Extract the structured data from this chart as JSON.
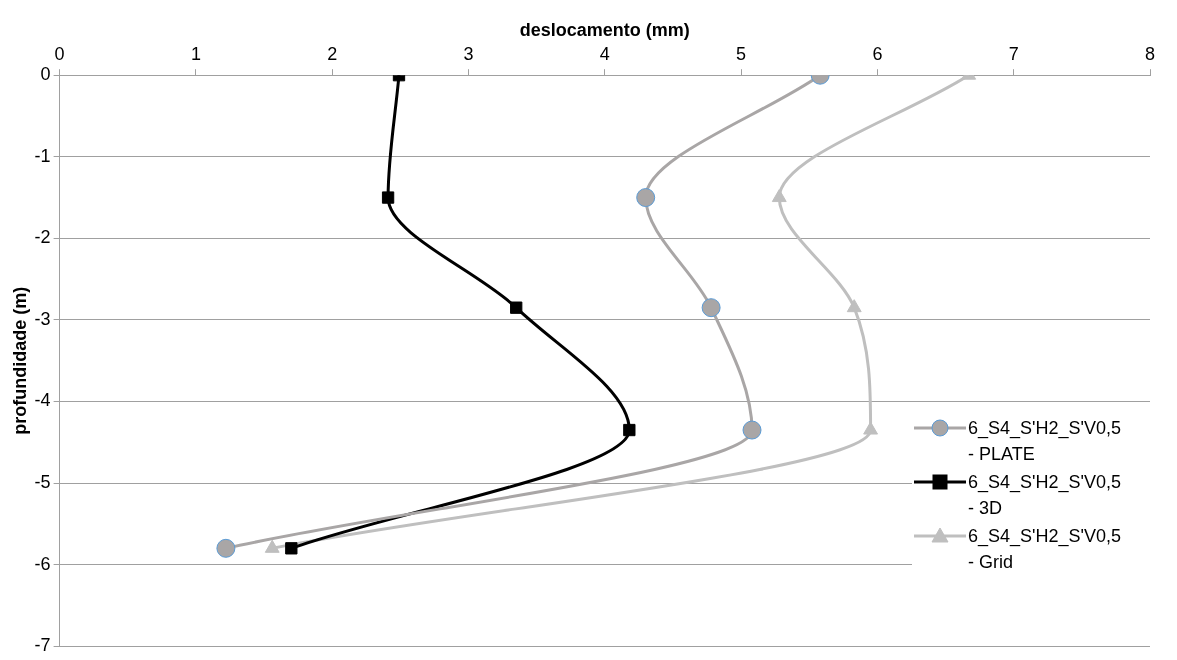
{
  "chart_data": {
    "type": "line",
    "xlabel": "deslocamento (mm)",
    "ylabel": "profundidade (m)",
    "xlim": [
      0,
      8
    ],
    "xticks": [
      0,
      1,
      2,
      3,
      4,
      5,
      6,
      7,
      8
    ],
    "ylim": [
      -7,
      0
    ],
    "yticks": [
      -7,
      -6,
      -5,
      -4,
      -3,
      -2,
      -1,
      0
    ],
    "grid": "y",
    "legend": "right",
    "line_style": "solid",
    "series": [
      {
        "name": "6_S4_S'H2_S'V0,5 - PLATE",
        "color": "#a9a6a6",
        "marker": "circle",
        "x": [
          5.58,
          4.3,
          4.78,
          5.08,
          1.22
        ],
        "values": [
          0,
          -1.5,
          -2.85,
          -4.35,
          -5.8
        ]
      },
      {
        "name": "6_S4_S'H2_S'V0,5 - 3D",
        "color": "#000000",
        "marker": "square",
        "x": [
          2.49,
          2.41,
          3.35,
          4.18,
          1.7
        ],
        "values": [
          0,
          -1.5,
          -2.85,
          -4.35,
          -5.8
        ]
      },
      {
        "name": "6_S4_S'H2_S'V0,5 - Grid",
        "color": "#bfbfbf",
        "marker": "triangle",
        "x": [
          6.67,
          5.28,
          5.83,
          5.95,
          1.56
        ],
        "values": [
          0,
          -1.5,
          -2.85,
          -4.35,
          -5.8
        ]
      }
    ]
  }
}
